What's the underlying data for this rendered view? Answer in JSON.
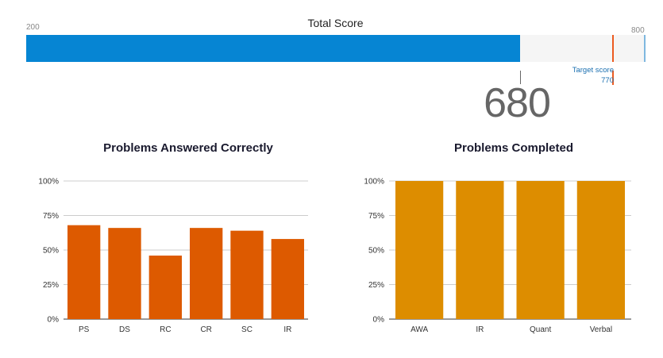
{
  "header": {
    "title": "Total Score",
    "min_label": "200",
    "max_label": "800",
    "score": "680",
    "target_label": "Target score",
    "target_value": "770"
  },
  "colors": {
    "score_fill": "#0685d3",
    "target": "#ec5b20",
    "correct_bars": "#dd5a00",
    "completed_bars": "#dd8d00"
  },
  "chart_data": [
    {
      "type": "bar",
      "title": "Problems Answered Correctly",
      "categories": [
        "PS",
        "DS",
        "RC",
        "CR",
        "SC",
        "IR"
      ],
      "values": [
        68,
        66,
        46,
        66,
        64,
        58
      ],
      "ylim": [
        0,
        100
      ],
      "yticks": [
        "0%",
        "25%",
        "50%",
        "75%",
        "100%"
      ],
      "grid": true
    },
    {
      "type": "bar",
      "title": "Problems Completed",
      "categories": [
        "AWA",
        "IR",
        "Quant",
        "Verbal"
      ],
      "values": [
        100,
        100,
        100,
        100
      ],
      "ylim": [
        0,
        100
      ],
      "yticks": [
        "0%",
        "25%",
        "50%",
        "75%",
        "100%"
      ],
      "grid": true
    }
  ]
}
